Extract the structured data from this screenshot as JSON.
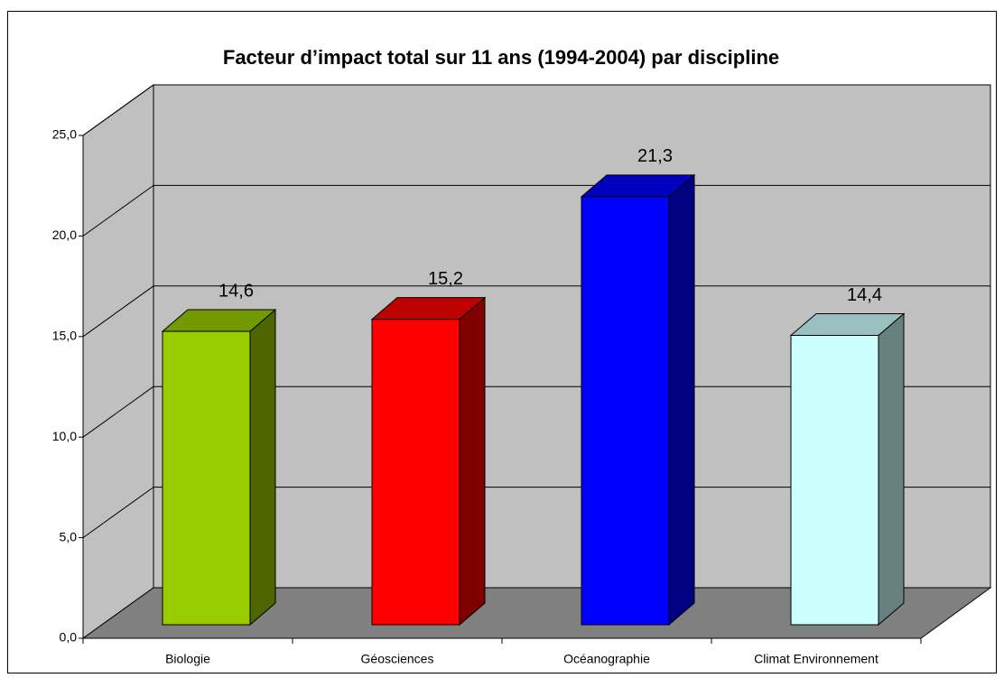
{
  "chart_data": {
    "type": "bar3d",
    "title": "Facteur d’impact total sur 11 ans (1994-2004) par discipline",
    "categories": [
      "Biologie",
      "Géosciences",
      "Océanographie",
      "Climat Environnement"
    ],
    "values": [
      14.6,
      15.2,
      21.3,
      14.4
    ],
    "value_labels": [
      "14,6",
      "15,2",
      "21,3",
      "14,4"
    ],
    "colors": [
      "#99cc00",
      "#ff0000",
      "#0000ff",
      "#ccffff"
    ],
    "ylim": [
      0,
      25
    ],
    "yticks": [
      {
        "value": 0,
        "label": "0,0"
      },
      {
        "value": 5,
        "label": "5,0"
      },
      {
        "value": 10,
        "label": "10,0"
      },
      {
        "value": 15,
        "label": "15,0"
      },
      {
        "value": 20,
        "label": "20,0"
      },
      {
        "value": 25,
        "label": "25,0"
      }
    ],
    "grid": true
  }
}
